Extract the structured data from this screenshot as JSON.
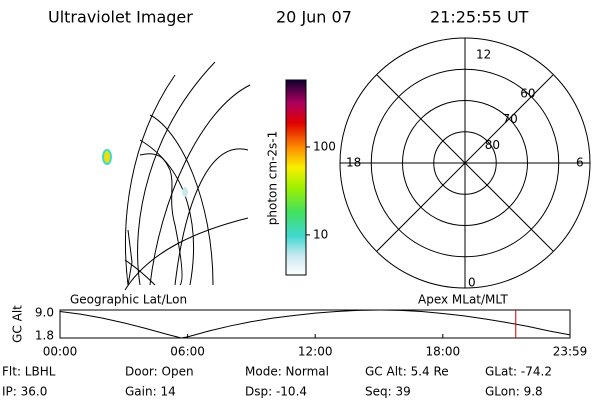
{
  "header": {
    "instrument": "Ultraviolet Imager",
    "date": "20 Jun 07",
    "time": "21:25:55 UT"
  },
  "colorbar": {
    "label": "photon cm-2s-1",
    "log": true,
    "lim": [
      3.5,
      577
    ],
    "ticks": [
      10,
      100
    ]
  },
  "polar": {
    "lat_lim": [
      90,
      50
    ],
    "lat_labels": [
      80,
      70,
      60
    ],
    "mlt_labels": {
      "top": "12",
      "left": "18",
      "right": "6",
      "bottom": "0"
    }
  },
  "map_labels": {
    "left": "Geographic Lat/Lon",
    "right": "Apex MLat/MLT"
  },
  "chart_data": {
    "type": "line",
    "ylabel": "GC Alt",
    "x": [
      0,
      1,
      2,
      3,
      4,
      5,
      5.7,
      6,
      7,
      8,
      9,
      10,
      11,
      12,
      13,
      14,
      15,
      16,
      17,
      18,
      19,
      20,
      21,
      22,
      23,
      23.98
    ],
    "series": [
      {
        "name": "GC Alt",
        "color": "#000000",
        "values": [
          8.6,
          7.9,
          6.9,
          5.7,
          4.3,
          2.8,
          1.8,
          2.1,
          3.6,
          4.9,
          6.0,
          6.9,
          7.6,
          8.2,
          8.6,
          8.9,
          9.0,
          8.9,
          8.6,
          8.1,
          7.5,
          6.7,
          5.8,
          4.8,
          3.6,
          2.6
        ]
      }
    ],
    "xlim": [
      0,
      23.98
    ],
    "xticks": [
      {
        "value": 0,
        "label": "00:00"
      },
      {
        "value": 6,
        "label": "06:00"
      },
      {
        "value": 12,
        "label": "12:00"
      },
      {
        "value": 18,
        "label": "18:00"
      },
      {
        "value": 23.98,
        "label": "23:59"
      }
    ],
    "ylim": [
      1.8,
      9.0
    ],
    "yticks": [
      {
        "value": 1.8,
        "label": "1.8"
      },
      {
        "value": 9.0,
        "label": "9.0"
      }
    ],
    "marker_x": 21.43,
    "marker_color": "#cc0000"
  },
  "info": {
    "rows": [
      [
        "Flt: LBHL",
        "Door: Open",
        "Mode: Normal",
        "GC Alt: 5.4 Re",
        "GLat: -74.2"
      ],
      [
        "IP: 36.0",
        "Gain: 14",
        "Dsp: -10.4",
        "Seq: 39",
        "GLon: 9.8"
      ]
    ]
  }
}
